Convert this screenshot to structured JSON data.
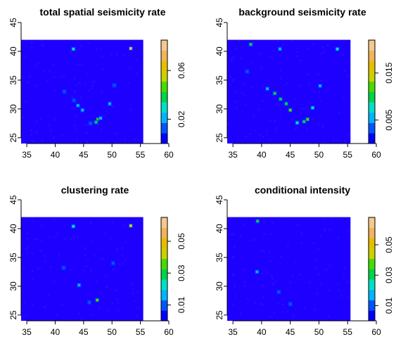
{
  "colors": {
    "background": "#1e00ff",
    "palette": [
      "#0000ff",
      "#0055ff",
      "#00b4ff",
      "#00e0c8",
      "#00d24b",
      "#46dc00",
      "#c8d200",
      "#e6be00",
      "#f0b45a",
      "#f5c88c"
    ]
  },
  "chart_data": [
    {
      "type": "heatmap",
      "title": "total spatial seismicity rate",
      "xlabel": "",
      "ylabel": "",
      "xlim": [
        34,
        60
      ],
      "ylim": [
        24,
        45
      ],
      "xticks": [
        "35",
        "40",
        "45",
        "50",
        "55",
        "60"
      ],
      "yticks": [
        "25",
        "30",
        "35",
        "40",
        "45"
      ],
      "data_extent": {
        "x": [
          34,
          55.5
        ],
        "y": [
          24,
          42
        ]
      },
      "colorbar": {
        "range": [
          0,
          0.085
        ],
        "ticks": [
          0.02,
          0.06
        ],
        "tick_labels": [
          "0.02",
          "0.06"
        ]
      },
      "background_value": 0.004,
      "hotspots": [
        {
          "x": 53.3,
          "y": 40.5,
          "v": 0.07
        },
        {
          "x": 43.2,
          "y": 40.4,
          "v": 0.03
        },
        {
          "x": 47.5,
          "y": 28.2,
          "v": 0.05
        },
        {
          "x": 47.2,
          "y": 27.7,
          "v": 0.035
        },
        {
          "x": 48.0,
          "y": 28.4,
          "v": 0.025
        },
        {
          "x": 44.8,
          "y": 29.8,
          "v": 0.02
        },
        {
          "x": 44.0,
          "y": 30.6,
          "v": 0.018
        },
        {
          "x": 43.3,
          "y": 31.5,
          "v": 0.015
        },
        {
          "x": 41.6,
          "y": 33.0,
          "v": 0.012
        },
        {
          "x": 49.6,
          "y": 30.9,
          "v": 0.02
        },
        {
          "x": 50.4,
          "y": 34.1,
          "v": 0.015
        },
        {
          "x": 46.2,
          "y": 27.5,
          "v": 0.015
        }
      ]
    },
    {
      "type": "heatmap",
      "title": "background seismicity rate",
      "xlabel": "",
      "ylabel": "",
      "xlim": [
        34,
        60
      ],
      "ylim": [
        24,
        45
      ],
      "xticks": [
        "35",
        "40",
        "45",
        "50",
        "55",
        "60"
      ],
      "yticks": [
        "25",
        "30",
        "35",
        "40",
        "45"
      ],
      "data_extent": {
        "x": [
          34,
          55.5
        ],
        "y": [
          24,
          42
        ]
      },
      "colorbar": {
        "range": [
          0,
          0.022
        ],
        "ticks": [
          0.005,
          0.015
        ],
        "tick_labels": [
          "0.005",
          "0.015"
        ]
      },
      "background_value": 0.0012,
      "hotspots": [
        {
          "x": 38.1,
          "y": 41.2,
          "v": 0.009
        },
        {
          "x": 43.2,
          "y": 40.4,
          "v": 0.006
        },
        {
          "x": 53.2,
          "y": 40.4,
          "v": 0.007
        },
        {
          "x": 48.0,
          "y": 28.2,
          "v": 0.012
        },
        {
          "x": 47.4,
          "y": 27.8,
          "v": 0.01
        },
        {
          "x": 45.0,
          "y": 29.8,
          "v": 0.011
        },
        {
          "x": 44.3,
          "y": 30.9,
          "v": 0.01
        },
        {
          "x": 43.3,
          "y": 31.7,
          "v": 0.009
        },
        {
          "x": 42.3,
          "y": 32.7,
          "v": 0.009
        },
        {
          "x": 48.9,
          "y": 30.2,
          "v": 0.008
        },
        {
          "x": 46.2,
          "y": 27.6,
          "v": 0.008
        },
        {
          "x": 41.0,
          "y": 33.5,
          "v": 0.006
        },
        {
          "x": 37.5,
          "y": 36.5,
          "v": 0.004
        },
        {
          "x": 50.2,
          "y": 34.0,
          "v": 0.005
        }
      ]
    },
    {
      "type": "heatmap",
      "title": "clustering rate",
      "xlabel": "",
      "ylabel": "",
      "xlim": [
        34,
        60
      ],
      "ylim": [
        24,
        45
      ],
      "xticks": [
        "35",
        "40",
        "45",
        "50",
        "55",
        "60"
      ],
      "yticks": [
        "25",
        "30",
        "35",
        "40",
        "45"
      ],
      "data_extent": {
        "x": [
          34,
          55.5
        ],
        "y": [
          24,
          42
        ]
      },
      "colorbar": {
        "range": [
          0,
          0.065
        ],
        "ticks": [
          0.01,
          0.03,
          0.05
        ],
        "tick_labels": [
          "0.01",
          "0.03",
          "0.05"
        ]
      },
      "background_value": 0.002,
      "hotspots": [
        {
          "x": 53.3,
          "y": 40.5,
          "v": 0.04
        },
        {
          "x": 43.2,
          "y": 40.4,
          "v": 0.02
        },
        {
          "x": 47.4,
          "y": 27.6,
          "v": 0.035
        },
        {
          "x": 44.2,
          "y": 30.2,
          "v": 0.015
        },
        {
          "x": 46.0,
          "y": 27.2,
          "v": 0.012
        },
        {
          "x": 41.5,
          "y": 33.2,
          "v": 0.01
        },
        {
          "x": 50.2,
          "y": 34.0,
          "v": 0.01
        }
      ]
    },
    {
      "type": "heatmap",
      "title": "conditional intensity",
      "xlabel": "",
      "ylabel": "",
      "xlim": [
        34,
        60
      ],
      "ylim": [
        24,
        45
      ],
      "xticks": [
        "35",
        "40",
        "45",
        "50",
        "55",
        "60"
      ],
      "yticks": [
        "25",
        "30",
        "35",
        "40",
        "45"
      ],
      "data_extent": {
        "x": [
          34,
          55.5
        ],
        "y": [
          24,
          42
        ]
      },
      "colorbar": {
        "range": [
          0,
          0.068
        ],
        "ticks": [
          0.01,
          0.03,
          0.05
        ],
        "tick_labels": [
          "0.01",
          "0.03",
          "0.05"
        ]
      },
      "background_value": 0.002,
      "hotspots": [
        {
          "x": 39.3,
          "y": 41.3,
          "v": 0.03
        },
        {
          "x": 39.2,
          "y": 32.5,
          "v": 0.015
        },
        {
          "x": 45.0,
          "y": 26.9,
          "v": 0.012
        },
        {
          "x": 43.0,
          "y": 29.0,
          "v": 0.008
        }
      ]
    }
  ]
}
